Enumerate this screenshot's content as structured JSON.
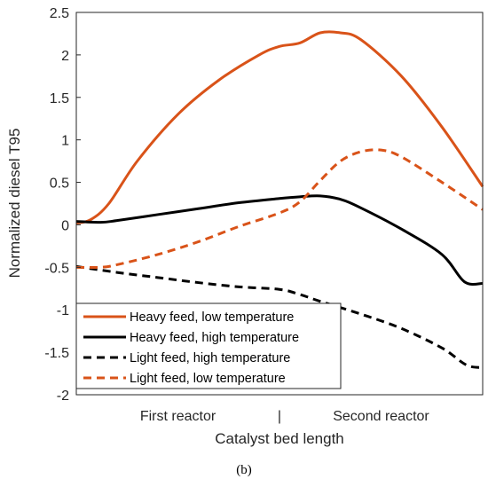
{
  "caption": "(b)",
  "chart_data": {
    "type": "line",
    "title": "",
    "xlabel": "Catalyst bed length",
    "ylabel": "Normalized diesel T95",
    "ylim": [
      -2,
      2.5
    ],
    "yticks": [
      "2.5",
      "2",
      "1.5",
      "1",
      "0.5",
      "0",
      "-0.5",
      "-1",
      "-1.5",
      "-2"
    ],
    "xlim": [
      0,
      1
    ],
    "x_tick_labels": [
      {
        "label": "First reactor",
        "x": 0.25
      },
      {
        "label": "|",
        "x": 0.5
      },
      {
        "label": "Second reactor",
        "x": 0.75
      }
    ],
    "grid": false,
    "legend_position": "bottom-left",
    "series": [
      {
        "name": "Heavy feed, low temperature",
        "color": "#d95319",
        "dash": "solid",
        "x": [
          0,
          0.035,
          0.08,
          0.15,
          0.25,
          0.35,
          0.45,
          0.5,
          0.55,
          0.6,
          0.65,
          0.7,
          0.8,
          0.9,
          1.0
        ],
        "y": [
          0.02,
          0.06,
          0.25,
          0.75,
          1.3,
          1.7,
          2.0,
          2.1,
          2.14,
          2.26,
          2.26,
          2.18,
          1.75,
          1.15,
          0.45
        ]
      },
      {
        "name": "Heavy feed, high temperature",
        "color": "#000000",
        "dash": "solid",
        "x": [
          0,
          0.06,
          0.1,
          0.2,
          0.3,
          0.4,
          0.5,
          0.55,
          0.6,
          0.65,
          0.7,
          0.8,
          0.9,
          0.955,
          1.0
        ],
        "y": [
          0.04,
          0.03,
          0.05,
          0.12,
          0.19,
          0.26,
          0.31,
          0.33,
          0.34,
          0.3,
          0.2,
          -0.05,
          -0.35,
          -0.67,
          -0.69
        ]
      },
      {
        "name": "Light feed, high temperature",
        "color": "#000000",
        "dash": "dashed",
        "x": [
          0,
          0.1,
          0.2,
          0.3,
          0.4,
          0.5,
          0.55,
          0.6,
          0.7,
          0.8,
          0.9,
          0.96,
          1.0
        ],
        "y": [
          -0.49,
          -0.56,
          -0.62,
          -0.68,
          -0.73,
          -0.76,
          -0.82,
          -0.9,
          -1.05,
          -1.22,
          -1.45,
          -1.65,
          -1.68
        ]
      },
      {
        "name": "Light feed, low temperature",
        "color": "#d95319",
        "dash": "dashed",
        "x": [
          0,
          0.06,
          0.1,
          0.2,
          0.3,
          0.4,
          0.5,
          0.55,
          0.6,
          0.65,
          0.7,
          0.75,
          0.8,
          0.9,
          1.0
        ],
        "y": [
          -0.5,
          -0.5,
          -0.47,
          -0.35,
          -0.2,
          -0.02,
          0.14,
          0.27,
          0.52,
          0.75,
          0.86,
          0.88,
          0.8,
          0.5,
          0.18
        ]
      }
    ]
  }
}
